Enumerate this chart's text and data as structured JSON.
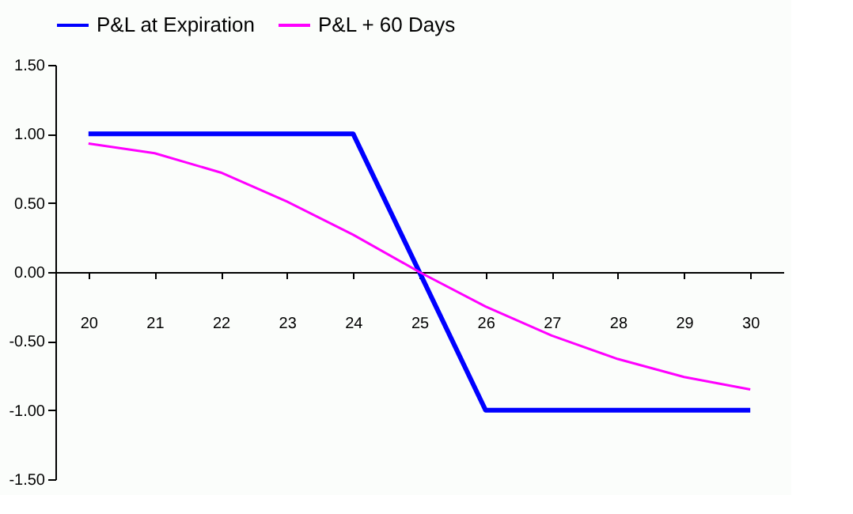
{
  "chart_data": {
    "type": "line",
    "series": [
      {
        "name": "P&L at Expiration",
        "color": "#0000ff",
        "x": [
          20,
          24,
          26,
          30
        ],
        "values": [
          1.0,
          1.0,
          -1.0,
          -1.0
        ]
      },
      {
        "name": "P&L + 60 Days",
        "color": "#ff00ff",
        "x": [
          20,
          21,
          22,
          23,
          24,
          25,
          26,
          27,
          28,
          29,
          30
        ],
        "values": [
          0.93,
          0.86,
          0.72,
          0.51,
          0.27,
          0.0,
          -0.25,
          -0.46,
          -0.63,
          -0.76,
          -0.85
        ]
      }
    ],
    "xlim": [
      19.5,
      30.5
    ],
    "xticks": [
      20,
      21,
      22,
      23,
      24,
      25,
      26,
      27,
      28,
      29,
      30
    ],
    "ylim": [
      -1.5,
      1.5
    ],
    "yticks": [
      {
        "value": -1.5,
        "label": "-1.50"
      },
      {
        "value": -1.0,
        "label": "-1.00"
      },
      {
        "value": -0.5,
        "label": "-0.50"
      },
      {
        "value": 0,
        "label": "0.00"
      },
      {
        "value": 0.5,
        "label": "0.50"
      },
      {
        "value": 1.0,
        "label": "1.00"
      },
      {
        "value": 1.5,
        "label": "1.50"
      }
    ],
    "legend": "top",
    "marker": "none",
    "line_style": "solid"
  }
}
